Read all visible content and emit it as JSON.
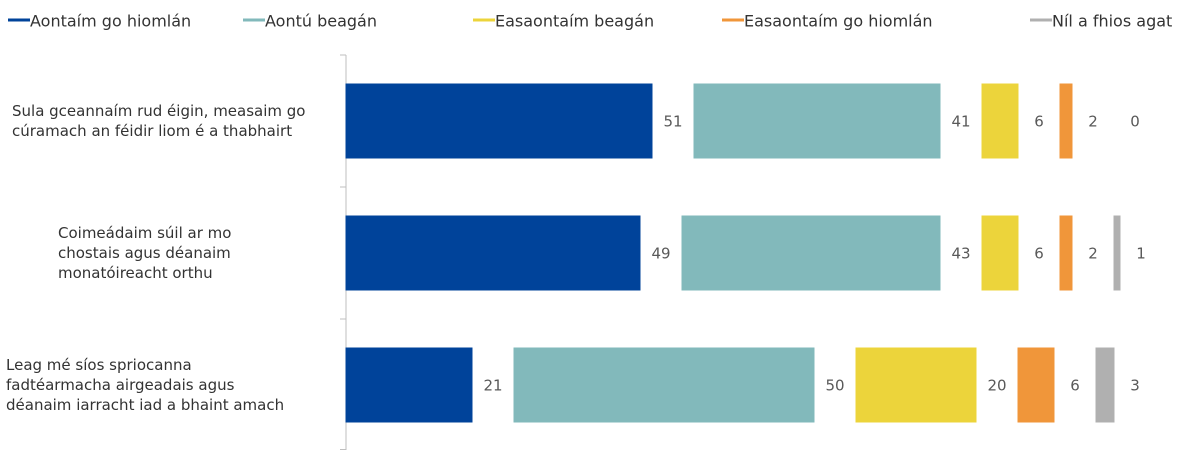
{
  "chart_data": {
    "type": "bar",
    "orientation": "horizontal",
    "stacked": true,
    "categories": [
      "Sula gceannaím rud éigin, measaim go cúramach an féidir liom é a thabhairt",
      "Coimeádaim súil ar mo chostais agus déanaim monatóireacht orthu",
      "Leag mé síos spriocanna fadtéarmacha airgeadais agus déanaim iarracht iad a bhaint amach"
    ],
    "series": [
      {
        "name": "Aontaím go hiomlán",
        "color": "#00439a",
        "values": [
          51,
          49,
          21
        ]
      },
      {
        "name": "Aontú beagán",
        "color": "#82b9bb",
        "values": [
          41,
          43,
          50
        ]
      },
      {
        "name": "Easaontaím beagán",
        "color": "#ecd43b",
        "values": [
          6,
          6,
          20
        ]
      },
      {
        "name": "Easaontaím go hiomlán",
        "color": "#f0963a",
        "values": [
          2,
          2,
          6
        ]
      },
      {
        "name": "Níl a fhios agat",
        "color": "#b0b0b0",
        "values": [
          0,
          1,
          3
        ]
      }
    ],
    "legend": "top"
  }
}
